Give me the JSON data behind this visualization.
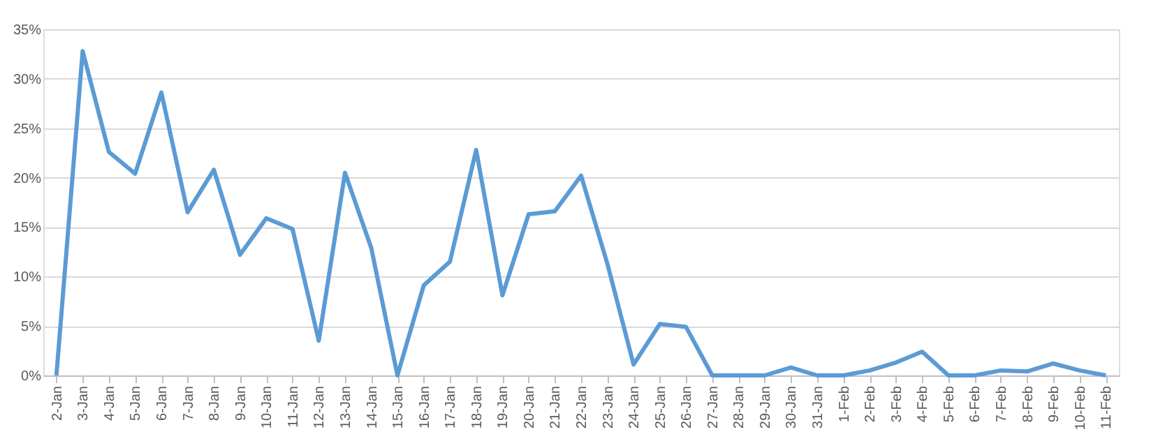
{
  "chart_data": {
    "type": "line",
    "categories": [
      "2-Jan",
      "3-Jan",
      "4-Jan",
      "5-Jan",
      "6-Jan",
      "7-Jan",
      "8-Jan",
      "9-Jan",
      "10-Jan",
      "11-Jan",
      "12-Jan",
      "13-Jan",
      "14-Jan",
      "15-Jan",
      "16-Jan",
      "17-Jan",
      "18-Jan",
      "19-Jan",
      "20-Jan",
      "21-Jan",
      "22-Jan",
      "23-Jan",
      "24-Jan",
      "25-Jan",
      "26-Jan",
      "27-Jan",
      "28-Jan",
      "29-Jan",
      "30-Jan",
      "31-Jan",
      "1-Feb",
      "2-Feb",
      "3-Feb",
      "4-Feb",
      "5-Feb",
      "6-Feb",
      "7-Feb",
      "8-Feb",
      "9-Feb",
      "10-Feb",
      "11-Feb"
    ],
    "series": [
      {
        "color": "#5b9bd5",
        "values": [
          0,
          32.8,
          22.6,
          20.4,
          28.6,
          16.5,
          20.8,
          12.2,
          15.9,
          14.8,
          3.5,
          20.5,
          12.9,
          0,
          9.1,
          11.5,
          22.8,
          8.1,
          16.3,
          16.6,
          20.2,
          11.3,
          1.1,
          5.2,
          4.9,
          0,
          0,
          0,
          0.8,
          0,
          0,
          0.5,
          1.3,
          2.4,
          0,
          0,
          0.5,
          0.4,
          1.2,
          0.5,
          0
        ]
      }
    ],
    "ylim": [
      0,
      35
    ],
    "yticks": [
      {
        "value": 0,
        "label": "0%"
      },
      {
        "value": 5,
        "label": "5%"
      },
      {
        "value": 10,
        "label": "10%"
      },
      {
        "value": 15,
        "label": "15%"
      },
      {
        "value": 20,
        "label": "20%"
      },
      {
        "value": 25,
        "label": "25%"
      },
      {
        "value": 30,
        "label": "30%"
      },
      {
        "value": 35,
        "label": "35%"
      }
    ],
    "grid": "y",
    "marker": "none",
    "line_style": "solid"
  }
}
